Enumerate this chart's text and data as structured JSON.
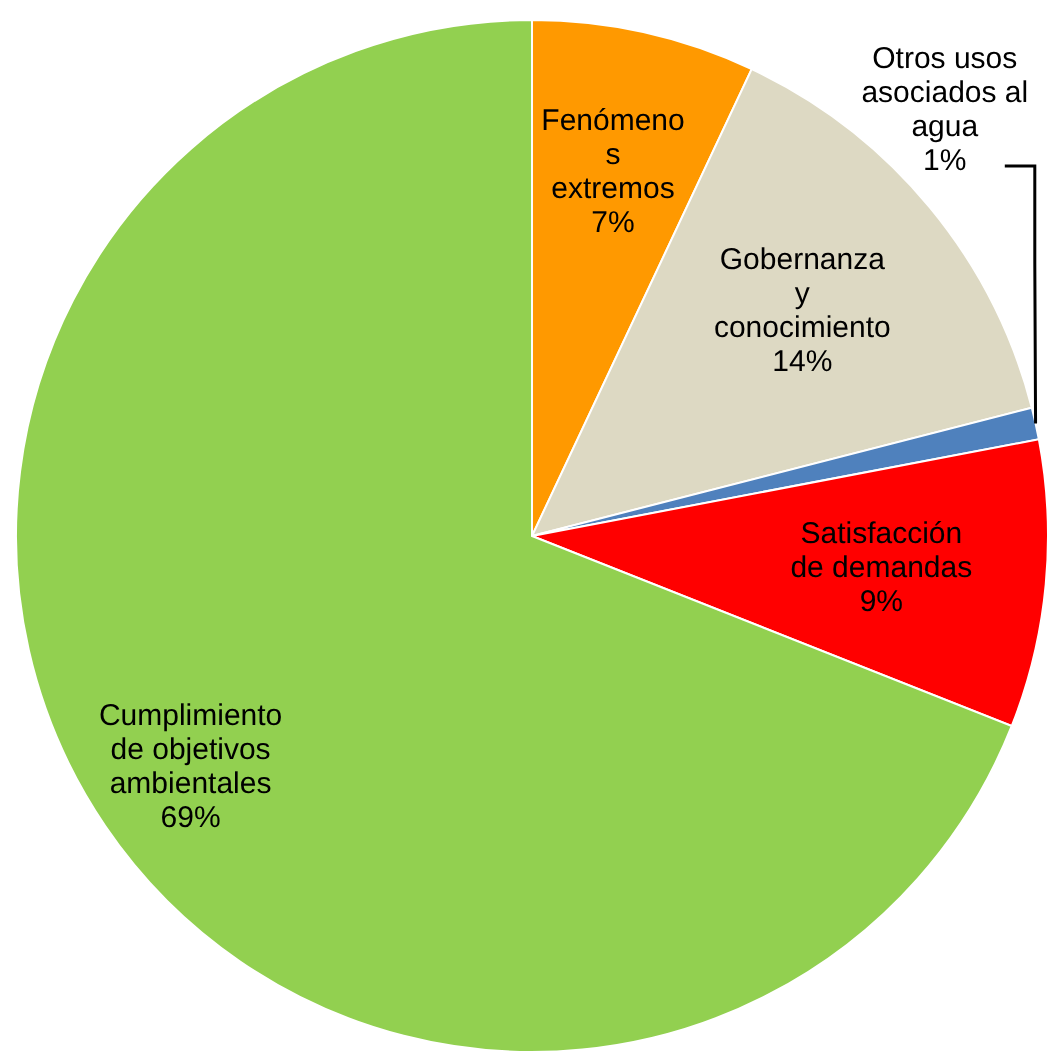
{
  "chart_data": {
    "type": "pie",
    "categories": [
      "Fenómenos extremos",
      "Gobernanza y conocimiento",
      "Otros usos asociados al agua",
      "Satisfacción de demandas",
      "Cumplimiento de objetivos ambientales"
    ],
    "values": [
      7,
      14,
      1,
      9,
      69
    ],
    "value_labels": [
      "7%",
      "14%",
      "1%",
      "9%",
      "69%"
    ],
    "colors": [
      "#ff9900",
      "#ddd9c3",
      "#4f81bd",
      "#ff0000",
      "#92d050"
    ]
  }
}
